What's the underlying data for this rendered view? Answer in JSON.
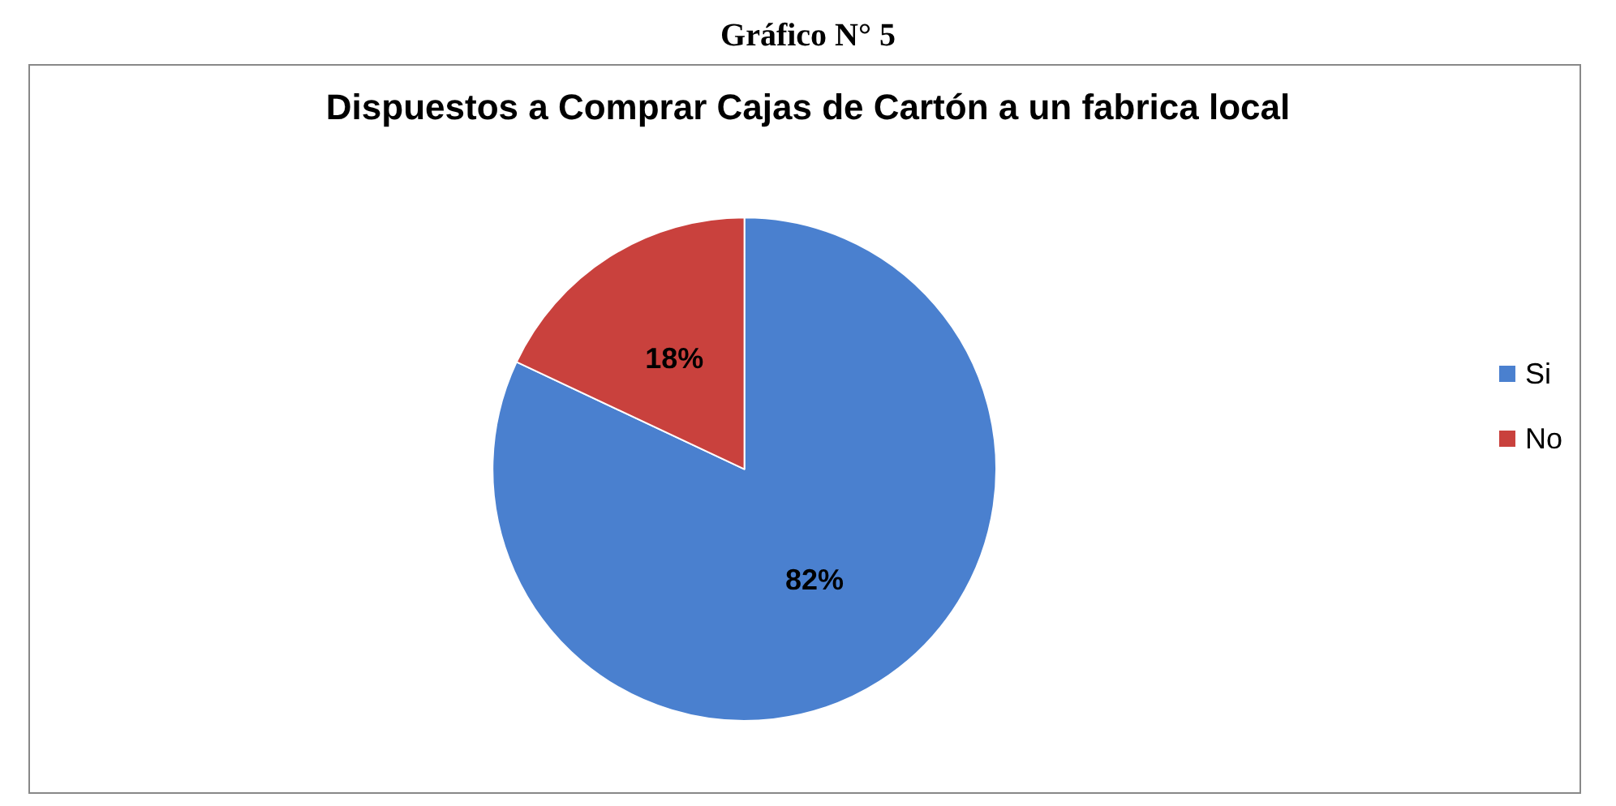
{
  "chart_data": {
    "type": "pie",
    "title": "Dispuestos a Comprar Cajas de Cartón a un fabrica local",
    "annotations": [
      "Gráfico N° 5"
    ],
    "categories": [
      "Si",
      "No"
    ],
    "values": [
      82,
      18
    ],
    "colors": [
      "#4a80cf",
      "#c9413d"
    ],
    "value_labels": [
      "82%",
      "18%"
    ],
    "legend": "right"
  }
}
